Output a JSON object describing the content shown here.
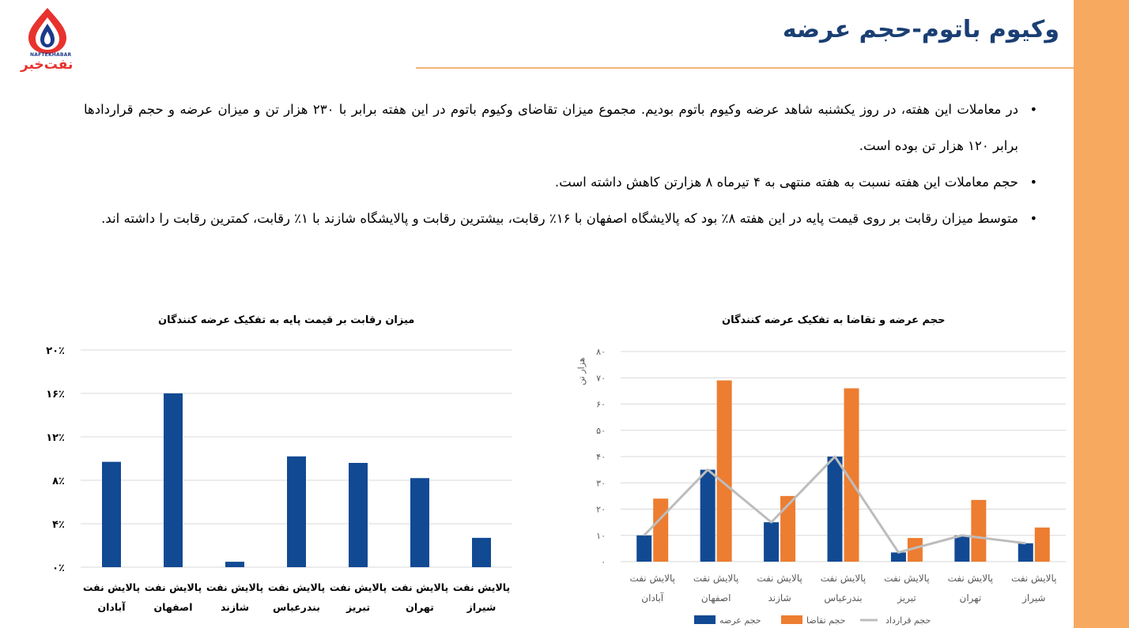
{
  "header": {
    "title": "وکیوم باتوم-حجم عرضه",
    "logo_text_latin": "NAFTEKHABAR",
    "logo_text_fa": "نفت‌خبر"
  },
  "bullets": [
    "در معاملات این هفته، در روز یکشنبه شاهد عرضه وکیوم باتوم بودیم. مجموع میزان تقاضای وکیوم باتوم در این هفته برابر با ۲۳۰ هزار تن و میزان عرضه و حجم قراردادها برابر ۱۲۰ هزار تن بوده است.",
    "حجم معاملات این هفته نسبت به هفته  منتهی به ۴ تیرماه ۸ هزارتن کاهش داشته است.",
    "متوسط میزان رقابت بر روی قیمت پایه در این هفته ۸٪ بود که پالایشگاه اصفهان با ۱۶٪ رقابت، بیشترین رقابت و پالایشگاه شازند با ۱٪ رقابت، کمترین رقابت را داشته اند."
  ],
  "colors": {
    "accent": "#f8a960",
    "title": "#1a3f73",
    "bar_blue": "#114a93",
    "bar_orange": "#ed7d31",
    "line_gray": "#bdbdbd"
  },
  "chart_data": [
    {
      "type": "bar",
      "title": "میزان رقابت بر قیمت پایه به تفکیک عرضه کنندگان",
      "categories": [
        [
          "پالایش نفت",
          "آبادان"
        ],
        [
          "پالایش نفت",
          "اصفهان"
        ],
        [
          "پالایش نفت",
          "شازند"
        ],
        [
          "پالایش نفت",
          "بندرعباس"
        ],
        [
          "پالایش نفت",
          "تبریز"
        ],
        [
          "پالایش نفت",
          "تهران"
        ],
        [
          "پالایش نفت",
          "شیراز"
        ]
      ],
      "values": [
        9.7,
        16,
        0.5,
        10.2,
        9.6,
        8.2,
        2.7
      ],
      "ylim": [
        0,
        20
      ],
      "yticks": [
        0,
        4,
        8,
        12,
        16,
        20
      ],
      "ytick_labels": [
        "۰٪",
        "۴٪",
        "۸٪",
        "۱۲٪",
        "۱۶٪",
        "۲۰٪"
      ],
      "grid": true
    },
    {
      "type": "bar",
      "title": "حجم عرضه و تقاضا به تفکیک عرضه کنندگان",
      "ylabel": "هزار تن",
      "categories": [
        [
          "پالایش نفت",
          "آبادان"
        ],
        [
          "پالایش نفت",
          "اصفهان"
        ],
        [
          "پالایش نفت",
          "شازند"
        ],
        [
          "پالایش نفت",
          "بندرعباس"
        ],
        [
          "پالایش نفت",
          "تبریز"
        ],
        [
          "پالایش نفت",
          "تهران"
        ],
        [
          "پالایش نفت",
          "شیراز"
        ]
      ],
      "ylim": [
        0,
        80
      ],
      "yticks": [
        0,
        10,
        20,
        30,
        40,
        50,
        60,
        70,
        80
      ],
      "ytick_labels": [
        "۰",
        "۱۰",
        "۲۰",
        "۳۰",
        "۴۰",
        "۵۰",
        "۶۰",
        "۷۰",
        "۸۰"
      ],
      "series": [
        {
          "name": "حجم عرضه",
          "kind": "bar",
          "color": "#114a93",
          "values": [
            10,
            35,
            15,
            40,
            3.5,
            10,
            7
          ]
        },
        {
          "name": "حجم تقاضا",
          "kind": "bar",
          "color": "#ed7d31",
          "values": [
            24,
            69,
            25,
            66,
            9,
            23.5,
            13
          ]
        },
        {
          "name": "حجم قرارداد",
          "kind": "line",
          "color": "#bdbdbd",
          "values": [
            10,
            35,
            15,
            40,
            3.5,
            10,
            7
          ]
        }
      ],
      "legend": "bottom",
      "grid": true
    }
  ]
}
